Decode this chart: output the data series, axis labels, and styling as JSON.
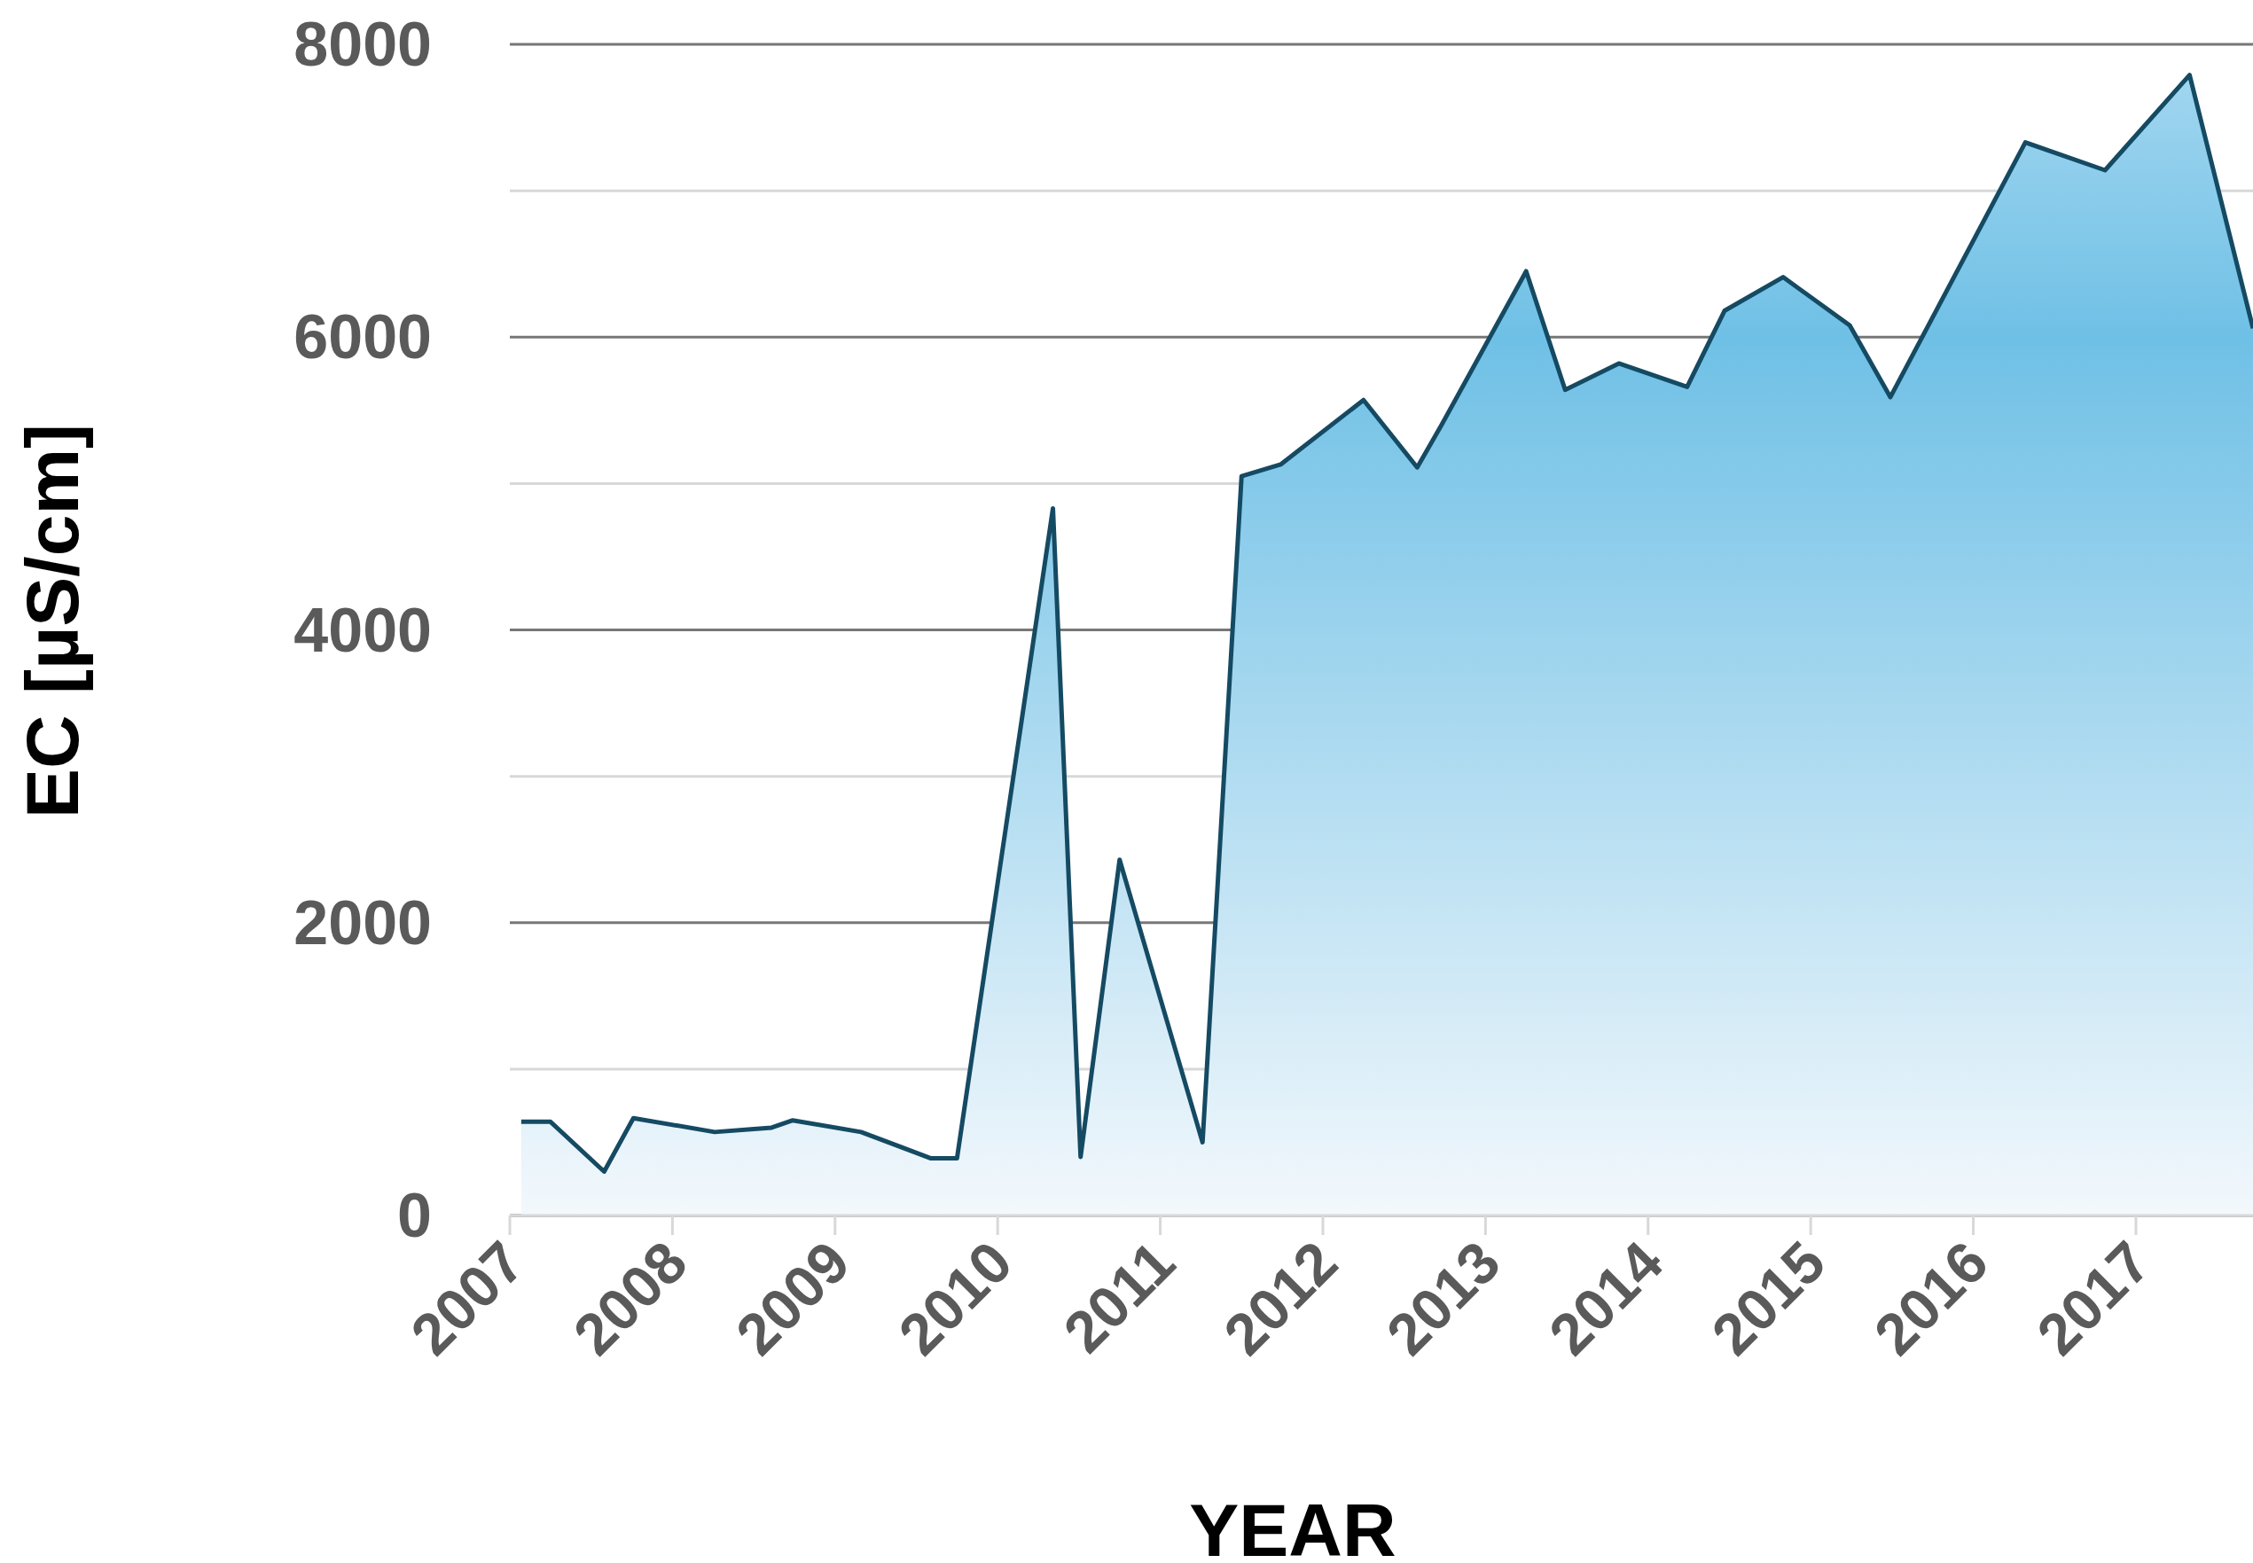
{
  "chart_data": {
    "type": "area",
    "xlabel": "YEAR",
    "ylabel": "EC [µS/cm]",
    "x": [
      2007.07,
      2007.25,
      2007.58,
      2007.76,
      2008.26,
      2008.61,
      2008.74,
      2009.16,
      2009.59,
      2009.75,
      2010.34,
      2010.51,
      2010.75,
      2011.26,
      2011.5,
      2011.74,
      2012.25,
      2012.58,
      2012.73,
      2013.25,
      2013.49,
      2013.82,
      2014.24,
      2014.47,
      2014.83,
      2015.24,
      2015.49,
      2016.32,
      2016.81,
      2017.33,
      2017.72
    ],
    "series": [
      {
        "color": "#154a63",
        "values": [
          640,
          640,
          300,
          665,
          570,
          600,
          650,
          570,
          390,
          390,
          4830,
          400,
          2430,
          500,
          5050,
          5130,
          5570,
          5110,
          5400,
          6450,
          5640,
          5820,
          5660,
          6180,
          6410,
          6080,
          5590,
          7330,
          7140,
          7790,
          6060
        ]
      }
    ],
    "xlim": [
      2007,
      2017.72
    ],
    "xticks": [
      2007,
      2008,
      2009,
      2010,
      2011,
      2012,
      2013,
      2014,
      2015,
      2016,
      2017
    ],
    "ylim": [
      0,
      8000
    ],
    "yticks": [
      0,
      {
        "value": 1000,
        "label": null
      },
      2000,
      {
        "value": 3000,
        "label": null
      },
      4000,
      {
        "value": 5000,
        "label": null
      },
      6000,
      {
        "value": 7000,
        "label": null
      },
      8000
    ],
    "grid": "y"
  }
}
